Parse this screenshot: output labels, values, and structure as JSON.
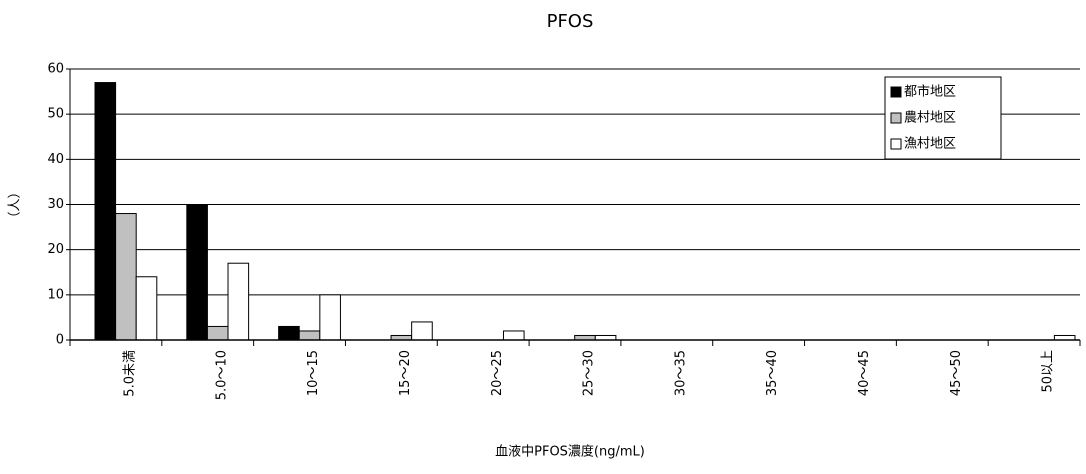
{
  "chart_data": {
    "type": "bar",
    "title": "PFOS",
    "x_label": "血液中PFOS濃度(ng/mL)",
    "y_label": "（人）",
    "categories": [
      "5.0未満",
      "5.0～10",
      "10～15",
      "15～20",
      "20～25",
      "25～30",
      "30～35",
      "35～40",
      "40～45",
      "45～50",
      "50以上"
    ],
    "series": [
      {
        "name": "都市地区",
        "color": "#000000",
        "values": [
          57,
          30,
          3,
          0,
          0,
          0,
          0,
          0,
          0,
          0,
          0
        ]
      },
      {
        "name": "農村地区",
        "color": "#c0c0c0",
        "values": [
          28,
          3,
          2,
          1,
          0,
          1,
          0,
          0,
          0,
          0,
          0
        ]
      },
      {
        "name": "漁村地区",
        "color": "#ffffff",
        "values": [
          14,
          17,
          10,
          4,
          2,
          1,
          0,
          0,
          0,
          0,
          1
        ]
      }
    ],
    "ylim": [
      0,
      60
    ],
    "yticks": [
      0,
      10,
      20,
      30,
      40,
      50,
      60
    ],
    "grid": true,
    "legend": "top-right"
  }
}
